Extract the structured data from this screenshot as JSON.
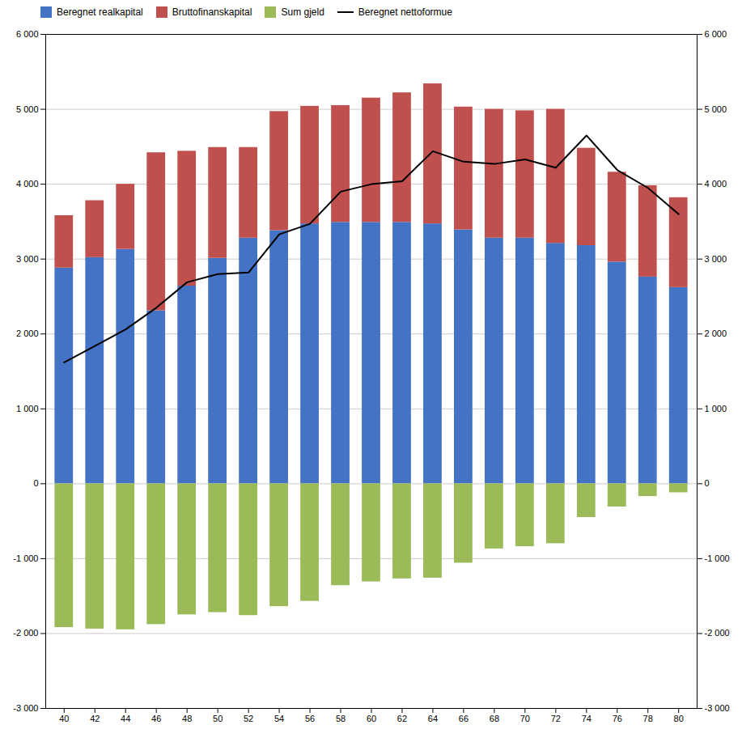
{
  "chart_data": {
    "type": "bar",
    "stacked": true,
    "x": [
      40,
      42,
      44,
      46,
      48,
      50,
      52,
      54,
      56,
      58,
      60,
      62,
      64,
      66,
      68,
      70,
      72,
      74,
      76,
      78,
      80
    ],
    "series": [
      {
        "name": "Beregnet realkapital",
        "type": "bar",
        "color": "#4472c4",
        "values": [
          2880,
          3020,
          3130,
          2310,
          2640,
          3010,
          3280,
          3380,
          3470,
          3490,
          3490,
          3490,
          3470,
          3390,
          3280,
          3280,
          3210,
          3180,
          2960,
          2760,
          2620
        ]
      },
      {
        "name": "Bruttofinanskapital",
        "type": "bar",
        "color": "#c0504d",
        "values": [
          700,
          760,
          870,
          2110,
          1800,
          1480,
          1210,
          1590,
          1570,
          1560,
          1660,
          1730,
          1870,
          1640,
          1720,
          1700,
          1790,
          1300,
          1200,
          1220,
          1200
        ]
      },
      {
        "name": "Sum gjeld",
        "type": "bar",
        "color": "#9bbb59",
        "values": [
          -1920,
          -1940,
          -1950,
          -1880,
          -1750,
          -1720,
          -1760,
          -1640,
          -1570,
          -1360,
          -1310,
          -1270,
          -1260,
          -1060,
          -870,
          -840,
          -800,
          -450,
          -310,
          -170,
          -120
        ]
      },
      {
        "name": "Beregnet nettoformue",
        "type": "line",
        "color": "#000000",
        "values": [
          1620,
          1840,
          2060,
          2350,
          2690,
          2800,
          2820,
          3330,
          3470,
          3900,
          4000,
          4040,
          4440,
          4300,
          4270,
          4330,
          4220,
          4650,
          4190,
          3950,
          3600
        ]
      }
    ],
    "xlim": [
      38.8,
      81.2
    ],
    "xticks": [
      40,
      42,
      44,
      46,
      48,
      50,
      52,
      54,
      56,
      58,
      60,
      62,
      64,
      66,
      68,
      70,
      72,
      74,
      76,
      78,
      80
    ],
    "ylim": [
      -3000,
      6000
    ],
    "yticks": [
      {
        "value": -3000,
        "label": "-3 000"
      },
      {
        "value": -2000,
        "label": "-2 000"
      },
      {
        "value": -1000,
        "label": "-1 000"
      },
      0,
      {
        "value": 1000,
        "label": "1 000"
      },
      {
        "value": 2000,
        "label": "2 000"
      },
      {
        "value": 3000,
        "label": "3 000"
      },
      {
        "value": 4000,
        "label": "4 000"
      },
      {
        "value": 5000,
        "label": "5 000"
      },
      {
        "value": 6000,
        "label": "6 000"
      }
    ],
    "y2lim": [
      -3000,
      6000
    ],
    "y2ticks": [
      {
        "value": -3000,
        "label": "-3 000"
      },
      {
        "value": -2000,
        "label": "-2 000"
      },
      {
        "value": -1000,
        "label": "-1 000"
      },
      0,
      {
        "value": 1000,
        "label": "1 000"
      },
      {
        "value": 2000,
        "label": "2 000"
      },
      {
        "value": 3000,
        "label": "3 000"
      },
      {
        "value": 4000,
        "label": "4 000"
      },
      {
        "value": 5000,
        "label": "5 000"
      },
      {
        "value": 6000,
        "label": "6 000"
      }
    ],
    "grid": true,
    "legend": "upper left"
  }
}
